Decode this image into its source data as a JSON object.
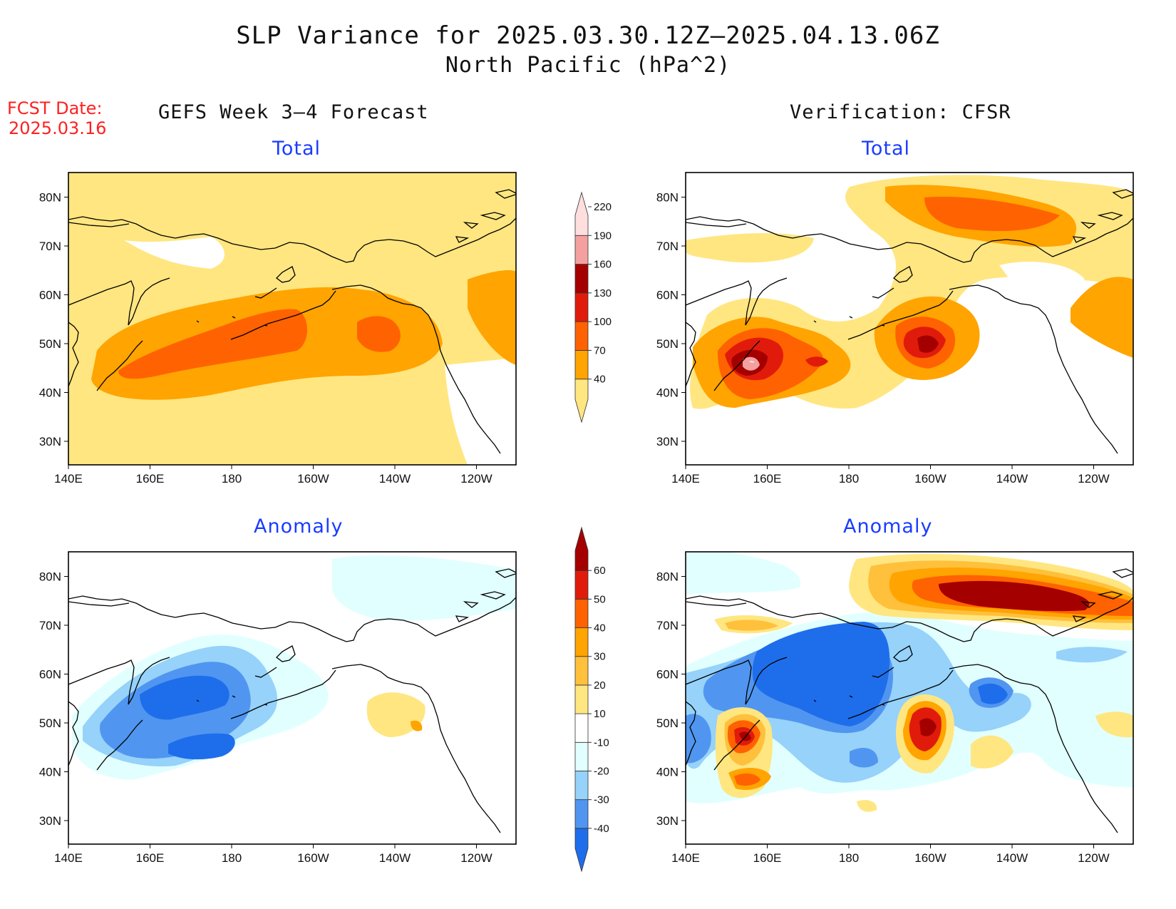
{
  "title_line1": "SLP Variance for 2025.03.30.12Z–2025.04.13.06Z",
  "title_line2": "North Pacific (hPa^2)",
  "fcst_label": "FCST Date:",
  "fcst_date": "2025.03.16",
  "left_column_title": "GEFS Week 3–4 Forecast",
  "right_column_title": "Verification: CFSR",
  "panel_titles": {
    "top_left": "Total",
    "top_right": "Total",
    "bottom_left": "Anomaly",
    "bottom_right": "Anomaly"
  },
  "axes": {
    "lat_labels": [
      "30N",
      "40N",
      "50N",
      "60N",
      "70N",
      "80N"
    ],
    "lon_labels": [
      "140E",
      "160E",
      "180",
      "160W",
      "140W",
      "120W"
    ]
  },
  "total_colorbar": {
    "levels": [
      "40",
      "70",
      "100",
      "130",
      "160",
      "190",
      "220"
    ],
    "colors": [
      "#ffe680",
      "#ffa400",
      "#ff6200",
      "#e11b0c",
      "#a50000",
      "#f4a0a0",
      "#ffdede"
    ]
  },
  "anomaly_colorbar": {
    "levels": [
      "-40",
      "-30",
      "-20",
      "-10",
      "10",
      "20",
      "30",
      "40",
      "50",
      "60"
    ],
    "colors": [
      "#1e6eeb",
      "#5096f0",
      "#96d2fa",
      "#e1ffff",
      "#ffffff",
      "#ffe680",
      "#ffc03c",
      "#ffa400",
      "#ff6200",
      "#e11b0c",
      "#a50000"
    ]
  },
  "land_color": "#ffffff",
  "coast_color": "#000000"
}
